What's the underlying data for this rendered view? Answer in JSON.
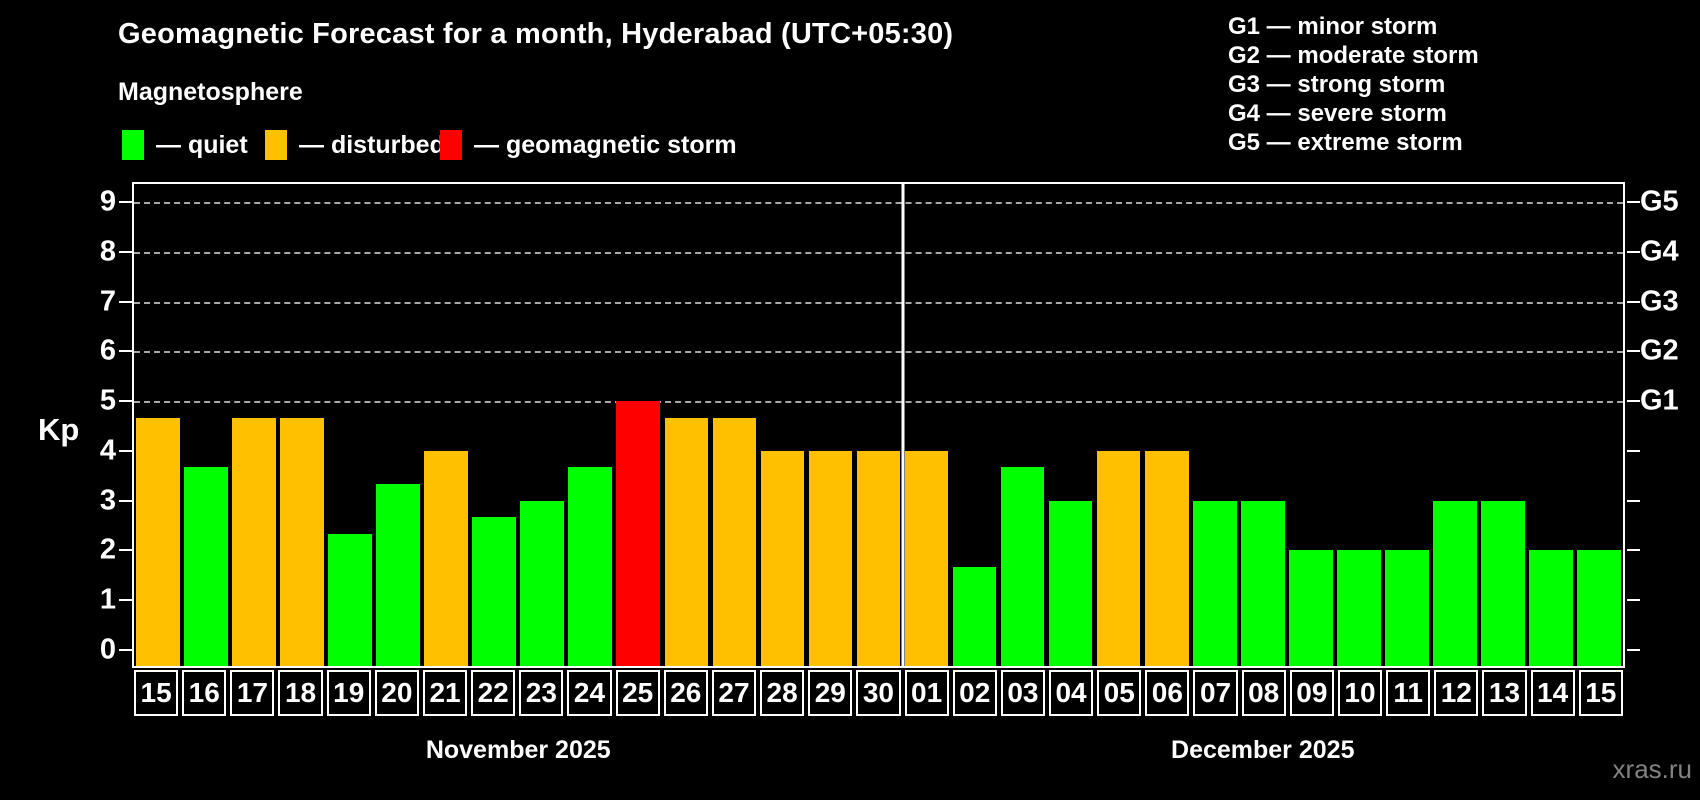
{
  "title": "Geomagnetic Forecast for a month, Hyderabad (UTC+05:30)",
  "subtitle": "Magnetosphere",
  "legend": [
    {
      "key": "quiet",
      "label": "— quiet"
    },
    {
      "key": "disturbed",
      "label": "— disturbed"
    },
    {
      "key": "storm",
      "label": "— geomagnetic storm"
    }
  ],
  "g_legend": [
    "G1 — minor storm",
    "G2 — moderate storm",
    "G3 — strong storm",
    "G4 — severe storm",
    "G5 — extreme storm"
  ],
  "colors": {
    "quiet": "#00ff00",
    "disturbed": "#ffc000",
    "storm": "#ff0000",
    "grid": "#a8a8a8",
    "axis": "#ffffff",
    "watermark": "#828282"
  },
  "watermark": "xras.ru",
  "chart_data": {
    "type": "bar",
    "ylabel": "Kp",
    "ylim": [
      0,
      9
    ],
    "yticks": [
      0,
      1,
      2,
      3,
      4,
      5,
      6,
      7,
      8,
      9
    ],
    "grid_levels": [
      5,
      6,
      7,
      8,
      9
    ],
    "grid_style": "dashed",
    "right_axis": [
      {
        "kp": 5,
        "label": "G1"
      },
      {
        "kp": 6,
        "label": "G2"
      },
      {
        "kp": 7,
        "label": "G3"
      },
      {
        "kp": 8,
        "label": "G4"
      },
      {
        "kp": 9,
        "label": "G5"
      }
    ],
    "months": [
      {
        "label": "November 2025",
        "days": 16
      },
      {
        "label": "December 2025",
        "days": 15
      }
    ],
    "days": [
      {
        "label": "15",
        "value": 4.67,
        "status": "disturbed"
      },
      {
        "label": "16",
        "value": 3.67,
        "status": "quiet"
      },
      {
        "label": "17",
        "value": 4.67,
        "status": "disturbed"
      },
      {
        "label": "18",
        "value": 4.67,
        "status": "disturbed"
      },
      {
        "label": "19",
        "value": 2.33,
        "status": "quiet"
      },
      {
        "label": "20",
        "value": 3.33,
        "status": "quiet"
      },
      {
        "label": "21",
        "value": 4.0,
        "status": "disturbed"
      },
      {
        "label": "22",
        "value": 2.67,
        "status": "quiet"
      },
      {
        "label": "23",
        "value": 3.0,
        "status": "quiet"
      },
      {
        "label": "24",
        "value": 3.67,
        "status": "quiet"
      },
      {
        "label": "25",
        "value": 5.0,
        "status": "storm"
      },
      {
        "label": "26",
        "value": 4.67,
        "status": "disturbed"
      },
      {
        "label": "27",
        "value": 4.67,
        "status": "disturbed"
      },
      {
        "label": "28",
        "value": 4.0,
        "status": "disturbed"
      },
      {
        "label": "29",
        "value": 4.0,
        "status": "disturbed"
      },
      {
        "label": "30",
        "value": 4.0,
        "status": "disturbed"
      },
      {
        "label": "01",
        "value": 4.0,
        "status": "disturbed"
      },
      {
        "label": "02",
        "value": 1.67,
        "status": "quiet"
      },
      {
        "label": "03",
        "value": 3.67,
        "status": "quiet"
      },
      {
        "label": "04",
        "value": 3.0,
        "status": "quiet"
      },
      {
        "label": "05",
        "value": 4.0,
        "status": "disturbed"
      },
      {
        "label": "06",
        "value": 4.0,
        "status": "disturbed"
      },
      {
        "label": "07",
        "value": 3.0,
        "status": "quiet"
      },
      {
        "label": "08",
        "value": 3.0,
        "status": "quiet"
      },
      {
        "label": "09",
        "value": 2.0,
        "status": "quiet"
      },
      {
        "label": "10",
        "value": 2.0,
        "status": "quiet"
      },
      {
        "label": "11",
        "value": 2.0,
        "status": "quiet"
      },
      {
        "label": "12",
        "value": 3.0,
        "status": "quiet"
      },
      {
        "label": "13",
        "value": 3.0,
        "status": "quiet"
      },
      {
        "label": "14",
        "value": 2.0,
        "status": "quiet"
      },
      {
        "label": "15",
        "value": 2.0,
        "status": "quiet"
      }
    ]
  }
}
